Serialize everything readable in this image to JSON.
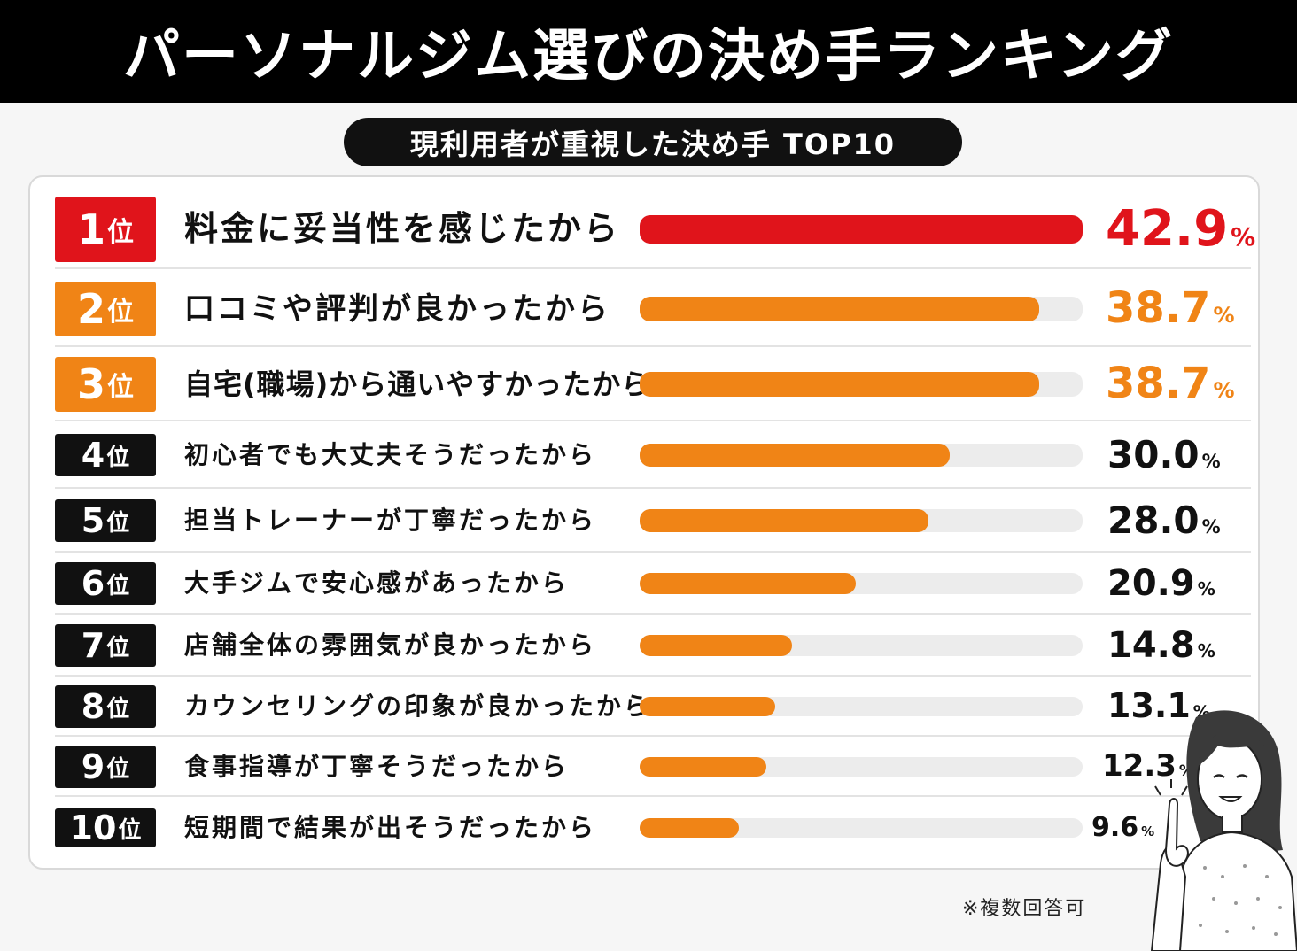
{
  "title": "パーソナルジム選びの決め手ランキング",
  "subtitle": "現利用者が重視した決め手 TOP10",
  "note": "※複数回答可",
  "colors": {
    "red": "#e0141b",
    "orange": "#f08416",
    "black": "#111111",
    "track": "#ececec"
  },
  "chart_data": {
    "type": "bar",
    "orientation": "horizontal",
    "unit": "%",
    "rank_suffix": "位",
    "categories": [
      "料金に妥当性を感じたから",
      "口コミや評判が良かったから",
      "自宅(職場)から通いやすかったから",
      "初心者でも大丈夫そうだったから",
      "担当トレーナーが丁寧だったから",
      "大手ジムで安心感があったから",
      "店舗全体の雰囲気が良かったから",
      "カウンセリングの印象が良かったから",
      "食事指導が丁寧そうだったから",
      "短期間で結果が出そうだったから"
    ],
    "ranks": [
      "1",
      "2",
      "3",
      "4",
      "5",
      "6",
      "7",
      "8",
      "9",
      "10"
    ],
    "values": [
      42.9,
      38.7,
      38.7,
      30.0,
      28.0,
      20.9,
      14.8,
      13.1,
      12.3,
      9.6
    ],
    "labels": [
      "42.9",
      "38.7",
      "38.7",
      "30.0",
      "28.0",
      "20.9",
      "14.8",
      "13.1",
      "12.3",
      "9.6"
    ],
    "xlim": [
      0,
      42.9
    ]
  }
}
